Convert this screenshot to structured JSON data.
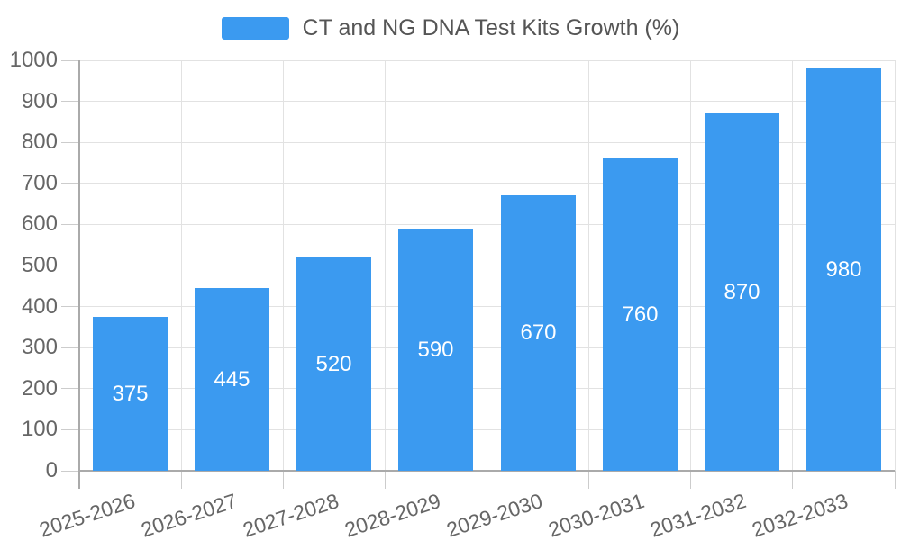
{
  "colors": {
    "bar": "#3B9AF0",
    "grid": "#E2E2E2",
    "axis": "#AAAAAA",
    "tick": "#CCCCCC",
    "axis_label_text": "#666666",
    "legend_text": "#555555",
    "value_label_text": "#FFFFFF",
    "background": "#FFFFFF"
  },
  "legend": {
    "items": [
      {
        "label": "CT and NG DNA Test Kits Growth (%)",
        "color": "#3B9AF0"
      }
    ],
    "position": "top-center"
  },
  "chart_data": {
    "type": "bar",
    "title": "CT and NG DNA Test Kits Growth (%)",
    "categories": [
      "2025-2026",
      "2026-2027",
      "2027-2028",
      "2028-2029",
      "2029-2030",
      "2030-2031",
      "2031-2032",
      "2032-2033"
    ],
    "series": [
      {
        "name": "CT and NG DNA Test Kits Growth (%)",
        "values": [
          375,
          445,
          520,
          590,
          670,
          760,
          870,
          980
        ]
      }
    ],
    "value_labels": [
      "375",
      "445",
      "520",
      "590",
      "670",
      "760",
      "870",
      "980"
    ],
    "value_label_position": "inside-center",
    "xlabel": "",
    "ylabel": "",
    "ylim": [
      0,
      1000
    ],
    "y_ticks": [
      0,
      100,
      200,
      300,
      400,
      500,
      600,
      700,
      800,
      900,
      1000
    ],
    "grid": "horizontal-and-vertical",
    "x_label_rotation_deg": -18,
    "legend_position": "top-center"
  }
}
